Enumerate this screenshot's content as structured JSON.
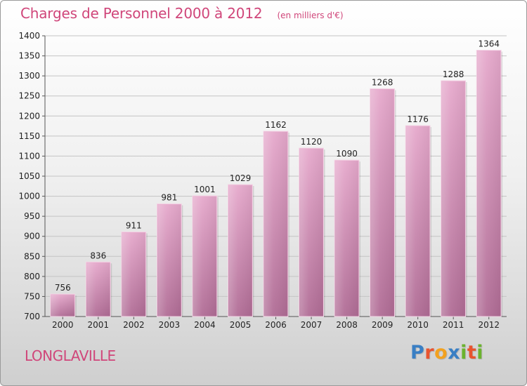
{
  "header": {
    "title": "Charges de Personnel 2000 à 2012",
    "subtitle": "(en milliers d'€)"
  },
  "footer": {
    "commune": "LONGLAVILLE",
    "logo": {
      "text": "Proxiti",
      "letters": [
        {
          "char": "P",
          "color": "#3a7fc4"
        },
        {
          "char": "r",
          "color": "#e8542f"
        },
        {
          "char": "o",
          "color": "#f2a11f"
        },
        {
          "char": "x",
          "color": "#3a7fc4"
        },
        {
          "char": "i",
          "color": "#6bb32e"
        },
        {
          "char": "t",
          "color": "#e8542f"
        },
        {
          "char": "i",
          "color": "#6bb32e"
        }
      ]
    }
  },
  "colors": {
    "title": "#d0467a",
    "bar_light": "#e3a6c9",
    "bar_dark": "#b8719b",
    "grid": "#c4c4c4"
  },
  "chart_data": {
    "type": "bar",
    "categories": [
      "2000",
      "2001",
      "2002",
      "2003",
      "2004",
      "2005",
      "2006",
      "2007",
      "2008",
      "2009",
      "2010",
      "2011",
      "2012"
    ],
    "values": [
      756,
      836,
      911,
      981,
      1001,
      1029,
      1162,
      1120,
      1090,
      1268,
      1176,
      1288,
      1364
    ],
    "ylim": [
      700,
      1400
    ],
    "yticks": [
      700,
      750,
      800,
      850,
      900,
      950,
      1000,
      1050,
      1100,
      1150,
      1200,
      1250,
      1300,
      1350,
      1400
    ],
    "grid": true,
    "title": "Charges de Personnel 2000 à 2012",
    "xlabel": "",
    "ylabel": ""
  }
}
